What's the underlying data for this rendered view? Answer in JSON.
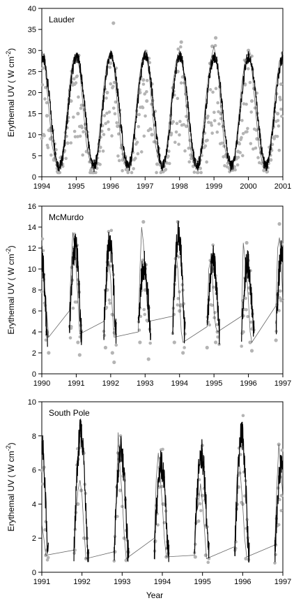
{
  "figure": {
    "xlabel": "Year",
    "ylabel_prefix": "Erythemal UV (  W cm",
    "ylabel_exp": "-2",
    "ylabel_suffix": ")"
  },
  "chart_data": [
    {
      "type": "line",
      "title": "Lauder",
      "xlabel": "",
      "ylabel": "Erythemal UV (  W cm-2)",
      "xlim": [
        1994,
        2001
      ],
      "ylim": [
        0,
        40
      ],
      "xticks": [
        1994,
        1995,
        1996,
        1997,
        1998,
        1999,
        2000,
        2001
      ],
      "yticks": [
        0,
        5,
        10,
        15,
        20,
        25,
        30,
        35,
        40
      ],
      "grid": false,
      "model": {
        "kind": "annual_cycle",
        "mean": 15.5,
        "amplitude": 13.0,
        "peak_fraction": 0.01,
        "start": 1994,
        "end": 2001
      },
      "series": [
        {
          "color": "#000000",
          "x": [
            1994.0,
            1994.1,
            1994.2,
            1994.3,
            1994.4,
            1994.5,
            1994.6,
            1994.7,
            1994.8,
            1994.9,
            1995.0,
            1995.1,
            1995.2,
            1995.3,
            1995.4,
            1995.5,
            1995.6,
            1995.7,
            1995.8,
            1995.9,
            1996.0,
            1996.1,
            1996.2,
            1996.3,
            1996.4,
            1996.5,
            1996.6,
            1996.7,
            1996.8,
            1996.9,
            1997.0,
            1997.1,
            1997.2,
            1997.3,
            1997.4,
            1997.5,
            1997.6,
            1997.7,
            1997.8,
            1997.9,
            1998.0,
            1998.1,
            1998.2,
            1998.3,
            1998.4,
            1998.5,
            1998.6,
            1998.7,
            1998.8,
            1998.9,
            1999.0,
            1999.1,
            1999.2,
            1999.3,
            1999.4,
            1999.5,
            1999.6,
            1999.7,
            1999.8,
            1999.9,
            2000.0,
            2000.1,
            2000.2,
            2000.3,
            2000.4,
            2000.5,
            2000.6,
            2000.7,
            2000.8,
            2000.9,
            2001.0
          ],
          "y": [
            29.0,
            25.5,
            16.5,
            7.5,
            3.5,
            2.5,
            5.0,
            12.5,
            21.5,
            27.5,
            29.0,
            25.5,
            16.5,
            7.5,
            3.5,
            2.5,
            5.0,
            12.5,
            21.5,
            27.5,
            30.0,
            26.0,
            16.5,
            7.5,
            3.5,
            2.5,
            5.0,
            12.5,
            21.5,
            27.5,
            30.0,
            26.0,
            16.5,
            7.5,
            3.5,
            2.5,
            5.0,
            12.5,
            21.5,
            27.5,
            30.0,
            26.0,
            16.5,
            7.5,
            3.5,
            2.5,
            5.0,
            12.5,
            21.5,
            27.5,
            31.0,
            26.5,
            16.5,
            7.5,
            3.5,
            2.5,
            5.0,
            12.5,
            21.5,
            27.5,
            29.5,
            25.5,
            16.5,
            7.5,
            3.5,
            2.5,
            5.0,
            12.5,
            21.5,
            27.5,
            29.0
          ]
        },
        {
          "color": "#b4b4b4",
          "marker": "circle",
          "x": [
            1994.05,
            1994.15,
            1994.25,
            1994.35,
            1994.45,
            1994.6,
            1994.75,
            1994.85,
            1994.95,
            1995.05,
            1995.15,
            1995.3,
            1995.45,
            1995.7,
            1995.9,
            1996.0,
            1996.08,
            1996.2,
            1996.35,
            1996.5,
            1996.7,
            1996.85,
            1996.95,
            1997.05,
            1997.2,
            1997.35,
            1997.55,
            1997.75,
            1997.95,
            1998.05,
            1998.2,
            1998.4,
            1998.6,
            1998.8,
            1998.95,
            1999.05,
            1999.2,
            1999.45,
            1999.7,
            1999.9,
            2000.0,
            2000.1,
            2000.25,
            2000.45,
            2000.65,
            2000.85,
            2000.95
          ],
          "y": [
            10.0,
            14.5,
            9.0,
            4.0,
            2.0,
            3.0,
            8.0,
            18.0,
            22.0,
            15.0,
            12.0,
            6.0,
            2.0,
            7.0,
            20.0,
            27.0,
            36.5,
            12.0,
            4.0,
            1.5,
            9.0,
            20.0,
            23.0,
            18.0,
            10.0,
            3.0,
            2.5,
            10.0,
            25.0,
            32.0,
            12.0,
            2.5,
            2.0,
            14.0,
            31.0,
            33.0,
            15.0,
            2.0,
            6.0,
            22.0,
            30.0,
            18.0,
            9.0,
            1.5,
            4.0,
            15.0,
            22.0
          ]
        }
      ]
    },
    {
      "type": "line",
      "title": "McMurdo",
      "xlabel": "",
      "ylabel": "Erythemal UV (  W cm-2)",
      "xlim": [
        1990,
        1997
      ],
      "ylim": [
        0,
        16
      ],
      "xticks": [
        1990,
        1991,
        1992,
        1993,
        1994,
        1995,
        1996,
        1997
      ],
      "yticks": [
        0,
        2,
        4,
        6,
        8,
        10,
        12,
        14,
        16
      ],
      "grid": false,
      "model": {
        "kind": "seasonal",
        "start": 1990,
        "end": 1997,
        "season_start": 0.8,
        "season_length": 0.37,
        "base": 4.0
      },
      "series": [
        {
          "color": "#000000",
          "x": [
            1990.0,
            1990.05,
            1990.1,
            1990.15,
            1990.2,
            1990.8,
            1990.85,
            1990.9,
            1990.95,
            1991.0,
            1991.05,
            1991.1,
            1991.8,
            1991.85,
            1991.9,
            1991.95,
            1992.0,
            1992.05,
            1992.1,
            1992.8,
            1992.85,
            1992.9,
            1992.95,
            1993.0,
            1993.05,
            1993.1,
            1993.8,
            1993.85,
            1993.9,
            1993.95,
            1994.0,
            1994.05,
            1994.1,
            1994.8,
            1994.85,
            1994.9,
            1994.95,
            1995.0,
            1995.05,
            1995.1,
            1995.8,
            1995.85,
            1995.9,
            1995.95,
            1996.0,
            1996.05,
            1996.1,
            1996.8,
            1996.85,
            1996.9,
            1996.95,
            1997.0
          ],
          "y": [
            11.5,
            10.0,
            7.5,
            5.5,
            3.5,
            6.0,
            10.0,
            13.5,
            12.0,
            10.0,
            7.0,
            3.8,
            5.0,
            7.0,
            9.0,
            10.8,
            9.0,
            6.0,
            3.5,
            4.0,
            10.0,
            14.0,
            12.5,
            10.0,
            7.0,
            5.0,
            5.5,
            10.0,
            11.5,
            10.0,
            7.0,
            4.0,
            3.0,
            4.5,
            10.0,
            10.8,
            9.5,
            6.0,
            4.5,
            4.0,
            5.5,
            12.5,
            11.0,
            9.5,
            7.0,
            4.0,
            3.0,
            6.5,
            12.0,
            13.0,
            11.0,
            7.0
          ]
        },
        {
          "color": "#b4b4b4",
          "marker": "circle",
          "x": [
            1990.05,
            1990.15,
            1990.2,
            1990.85,
            1990.95,
            1991.05,
            1991.1,
            1991.85,
            1991.9,
            1992.05,
            1992.1,
            1992.85,
            1992.95,
            1993.0,
            1993.1,
            1993.85,
            1993.95,
            1994.0,
            1994.1,
            1994.8,
            1994.95,
            1995.05,
            1995.1,
            1995.85,
            1995.95,
            1996.05,
            1996.1,
            1996.8,
            1996.9,
            1996.95
          ],
          "y": [
            9.0,
            4.0,
            2.0,
            4.5,
            11.0,
            3.0,
            1.8,
            2.5,
            8.0,
            2.0,
            1.1,
            3.0,
            14.5,
            8.0,
            1.4,
            3.0,
            14.5,
            6.0,
            2.0,
            2.5,
            10.0,
            3.0,
            4.0,
            4.0,
            12.5,
            3.0,
            2.2,
            3.2,
            14.3,
            7.0
          ]
        }
      ]
    },
    {
      "type": "line",
      "title": "South Pole",
      "xlabel": "Year",
      "ylabel": "Erythemal UV (  W cm-2)",
      "xlim": [
        1991,
        1997
      ],
      "ylim": [
        0,
        10
      ],
      "xticks": [
        1991,
        1992,
        1993,
        1994,
        1995,
        1996,
        1997
      ],
      "yticks": [
        0,
        2,
        4,
        6,
        8,
        10
      ],
      "grid": false,
      "model": {
        "kind": "seasonal",
        "start": 1991,
        "end": 1997,
        "season_start": 0.8,
        "season_length": 0.37,
        "base": 1.0
      },
      "series": [
        {
          "color": "#000000",
          "x": [
            1991.0,
            1991.05,
            1991.1,
            1991.8,
            1991.85,
            1991.9,
            1991.95,
            1992.0,
            1992.05,
            1992.1,
            1992.8,
            1992.85,
            1992.9,
            1992.95,
            1993.0,
            1993.05,
            1993.1,
            1993.8,
            1993.85,
            1993.9,
            1993.95,
            1994.0,
            1994.05,
            1994.1,
            1994.8,
            1994.85,
            1994.9,
            1994.95,
            1995.0,
            1995.05,
            1995.1,
            1995.8,
            1995.85,
            1995.9,
            1995.95,
            1996.0,
            1996.05,
            1996.1,
            1996.8,
            1996.85,
            1996.9,
            1996.95,
            1997.0
          ],
          "y": [
            2.8,
            2.0,
            1.0,
            1.3,
            3.5,
            4.8,
            5.4,
            4.5,
            2.5,
            0.8,
            1.2,
            4.0,
            8.2,
            6.0,
            4.5,
            2.2,
            0.8,
            2.0,
            5.5,
            7.0,
            5.5,
            4.0,
            2.0,
            0.9,
            1.0,
            3.5,
            4.0,
            5.2,
            4.0,
            2.5,
            0.8,
            1.5,
            5.0,
            6.8,
            5.5,
            4.0,
            2.0,
            0.9,
            1.6,
            5.0,
            7.5,
            6.0,
            4.5
          ]
        },
        {
          "color": "#b4b4b4",
          "marker": "circle",
          "x": [
            1991.1,
            1991.82,
            1991.9,
            1991.98,
            1992.05,
            1992.1,
            1992.82,
            1992.9,
            1992.95,
            1993.05,
            1993.1,
            1993.82,
            1993.92,
            1994.02,
            1994.1,
            1994.82,
            1994.9,
            1995.0,
            1995.08,
            1995.82,
            1995.9,
            1996.0,
            1996.08,
            1996.82,
            1996.9,
            1996.97
          ],
          "y": [
            1.0,
            1.3,
            4.0,
            4.8,
            2.0,
            0.8,
            1.2,
            7.0,
            4.8,
            2.0,
            0.7,
            1.8,
            5.0,
            4.0,
            0.9,
            0.9,
            3.0,
            4.5,
            1.0,
            1.4,
            5.0,
            4.0,
            0.8,
            1.6,
            7.5,
            4.5
          ]
        }
      ]
    }
  ]
}
